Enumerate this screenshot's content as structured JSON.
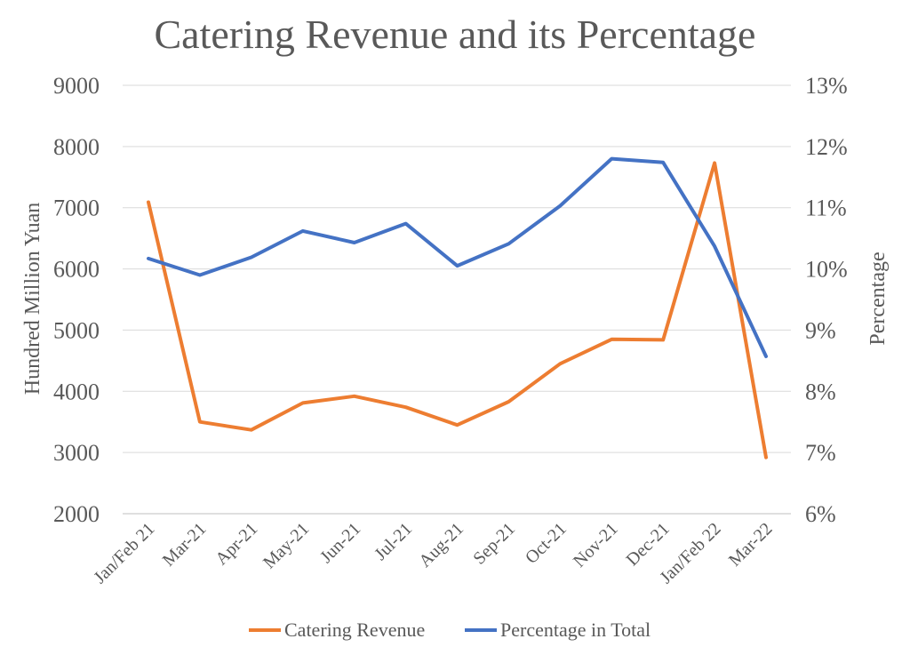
{
  "chart_data": {
    "type": "line",
    "title": "Catering Revenue and its Percentage",
    "categories": [
      "Jan/Feb 21",
      "Mar-21",
      "Apr-21",
      "May-21",
      "Jun-21",
      "Jul-21",
      "Aug-21",
      "Sep-21",
      "Oct-21",
      "Nov-21",
      "Dec-21",
      "Jan/Feb 22",
      "Mar-22"
    ],
    "y_left": {
      "label": "Hundred Million Yuan",
      "ylim": [
        2000,
        9000
      ],
      "ticks": [
        "2000",
        "3000",
        "4000",
        "5000",
        "6000",
        "7000",
        "8000",
        "9000"
      ]
    },
    "y_right": {
      "label": "Percentage",
      "ylim": [
        6,
        13
      ],
      "ticks": [
        "6%",
        "7%",
        "8%",
        "9%",
        "10%",
        "11%",
        "12%",
        "13%"
      ]
    },
    "series": [
      {
        "name": "Catering Revenue",
        "axis": "left",
        "color": "#ED7D31",
        "values": [
          7090,
          3500,
          3370,
          3810,
          3920,
          3740,
          3450,
          3830,
          4450,
          4850,
          4840,
          7730,
          2920
        ]
      },
      {
        "name": "Percentage in Total",
        "axis": "right",
        "color": "#4472C4",
        "values": [
          10.17,
          9.9,
          10.19,
          10.62,
          10.43,
          10.74,
          10.05,
          10.41,
          11.03,
          11.8,
          11.74,
          10.37,
          8.57
        ]
      }
    ],
    "grid": true,
    "legend": "bottom"
  }
}
